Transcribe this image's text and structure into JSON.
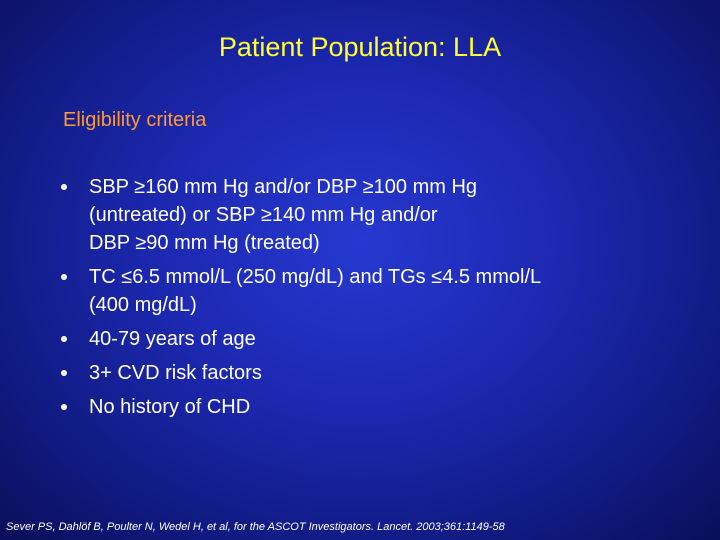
{
  "header": {
    "title": "Patient Population: LLA"
  },
  "section": {
    "heading": "Eligibility criteria"
  },
  "bullets": [
    {
      "lines": [
        "SBP ≥160 mm Hg and/or DBP ≥100 mm Hg",
        "(untreated) or SBP ≥140 mm Hg and/or",
        "DBP ≥90 mm Hg (treated)"
      ]
    },
    {
      "lines": [
        "TC ≤6.5 mmol/L (250 mg/dL) and TGs ≤4.5 mmol/L",
        "(400 mg/dL)"
      ]
    },
    {
      "lines": [
        "40-79 years of age"
      ]
    },
    {
      "lines": [
        "3+ CVD risk factors"
      ]
    },
    {
      "lines": [
        "No history of CHD"
      ]
    }
  ],
  "footer": {
    "citation": "Sever PS, Dahlöf B, Poulter N, Wedel H, et al, for the ASCOT Investigators. Lancet. 2003;361:1149-58"
  }
}
